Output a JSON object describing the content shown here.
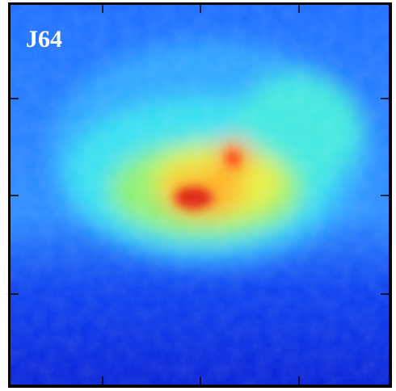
{
  "label": "J64"
}
